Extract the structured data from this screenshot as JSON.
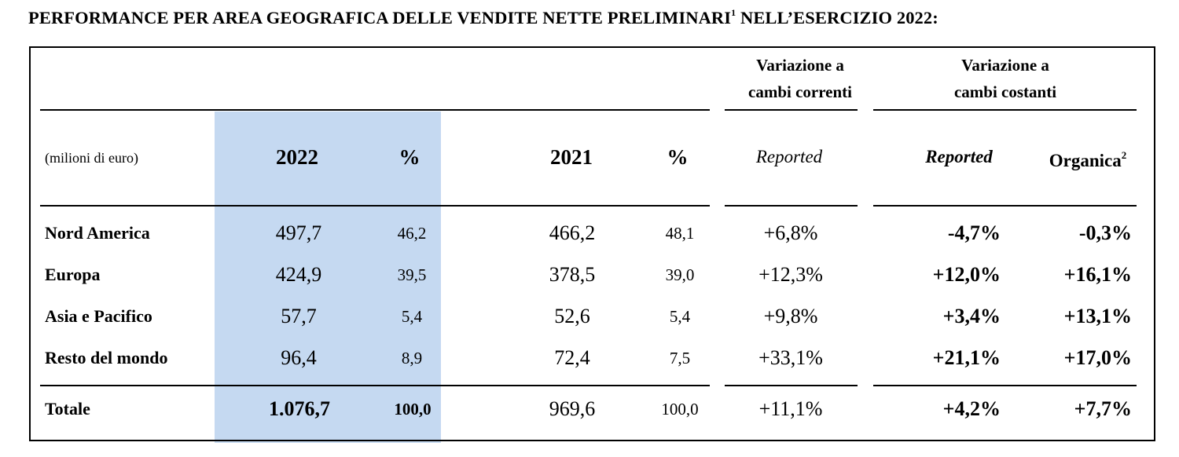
{
  "title": {
    "text": "PERFORMANCE PER AREA GEOGRAFICA DELLE VENDITE NETTE PRELIMINARI",
    "sup": "1",
    "text_after": " NELL’ESERCIZIO 2022:"
  },
  "header": {
    "group_correnti": [
      "Variazione a",
      "cambi correnti"
    ],
    "group_costanti": [
      "Variazione a",
      "cambi costanti"
    ],
    "unit": "(milioni di euro)",
    "col_2022": "2022",
    "col_pct_2022": "%",
    "col_2021": "2021",
    "col_pct_2021": "%",
    "col_reported_correnti": "Reported",
    "col_reported_costanti": "Reported",
    "col_organica": "Organica",
    "col_organica_sup": "2"
  },
  "rows": [
    {
      "label": "Nord America",
      "v2022": "497,7",
      "p2022": "46,2",
      "v2021": "466,2",
      "p2021": "48,1",
      "rep_corr": "+6,8%",
      "rep_cost": "-4,7%",
      "organica": "-0,3%"
    },
    {
      "label": "Europa",
      "v2022": "424,9",
      "p2022": "39,5",
      "v2021": "378,5",
      "p2021": "39,0",
      "rep_corr": "+12,3%",
      "rep_cost": "+12,0%",
      "organica": "+16,1%"
    },
    {
      "label": "Asia e Pacifico",
      "v2022": "57,7",
      "p2022": "5,4",
      "v2021": "52,6",
      "p2021": "5,4",
      "rep_corr": "+9,8%",
      "rep_cost": "+3,4%",
      "organica": "+13,1%"
    },
    {
      "label": "Resto del mondo",
      "v2022": "96,4",
      "p2022": "8,9",
      "v2021": "72,4",
      "p2021": "7,5",
      "rep_corr": "+33,1%",
      "rep_cost": "+21,1%",
      "organica": "+17,0%"
    }
  ],
  "total": {
    "label": "Totale",
    "v2022": "1.076,7",
    "p2022": "100,0",
    "v2021": "969,6",
    "p2021": "100,0",
    "rep_corr": "+11,1%",
    "rep_cost": "+4,2%",
    "organica": "+7,7%"
  },
  "colors": {
    "highlight": "#c5d9f1"
  }
}
